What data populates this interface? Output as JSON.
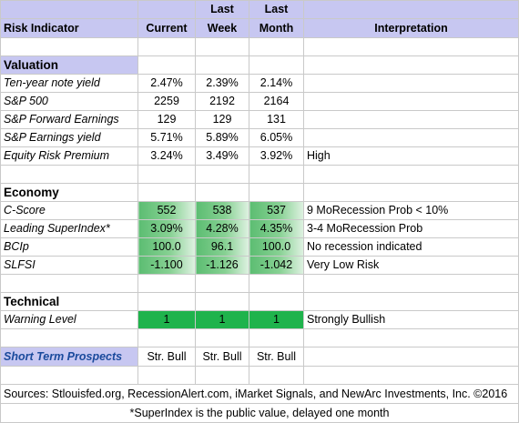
{
  "headers": {
    "indicator": "Risk Indicator",
    "current": "Current",
    "last_week_1": "Last",
    "last_week_2": "Week",
    "last_month_1": "Last",
    "last_month_2": "Month",
    "interpretation": "Interpretation"
  },
  "valuation": {
    "title": "Valuation",
    "rows": [
      {
        "name": "Ten-year note yield",
        "current": "2.47%",
        "week": "2.39%",
        "month": "2.14%",
        "interp": ""
      },
      {
        "name": "S&P 500",
        "current": "2259",
        "week": "2192",
        "month": "2164",
        "interp": ""
      },
      {
        "name": "S&P Forward Earnings",
        "current": "129",
        "week": "129",
        "month": "131",
        "interp": ""
      },
      {
        "name": "S&P Earnings yield",
        "current": "5.71%",
        "week": "5.89%",
        "month": "6.05%",
        "interp": ""
      },
      {
        "name": "Equity Risk Premium",
        "current": "3.24%",
        "week": "3.49%",
        "month": "3.92%",
        "interp": "High"
      }
    ]
  },
  "economy": {
    "title": "Economy",
    "rows": [
      {
        "name": "C-Score",
        "current": "552",
        "week": "538",
        "month": "537",
        "interp": "9 MoRecession Prob < 10%"
      },
      {
        "name": "Leading SuperIndex*",
        "current": "3.09%",
        "week": "4.28%",
        "month": "4.35%",
        "interp": "3-4 MoRecession Prob"
      },
      {
        "name": "BCIp",
        "current": "100.0",
        "week": "96.1",
        "month": "100.0",
        "interp": "No recession indicated"
      },
      {
        "name": "SLFSI",
        "current": "-1.100",
        "week": "-1.126",
        "month": "-1.042",
        "interp": "Very Low Risk"
      }
    ]
  },
  "technical": {
    "title": "Technical",
    "rows": [
      {
        "name": "Warning Level",
        "current": "1",
        "week": "1",
        "month": "1",
        "interp": "Strongly Bullish"
      }
    ]
  },
  "prospects": {
    "name": "Short Term Prospects",
    "current": "Str. Bull",
    "week": "Str. Bull",
    "month": "Str. Bull"
  },
  "sources": "Sources: Stlouisfed.org, RecessionAlert.com, iMarket Signals, and NewArc Investments, Inc. ©2016",
  "footnote": "*SuperIndex is the public value, delayed one month",
  "colors": {
    "header_bg": "#c7c7f1",
    "gradient_green": "#5cbd72",
    "solid_green": "#1fb34c",
    "prospects_text": "#1a4a9c"
  }
}
